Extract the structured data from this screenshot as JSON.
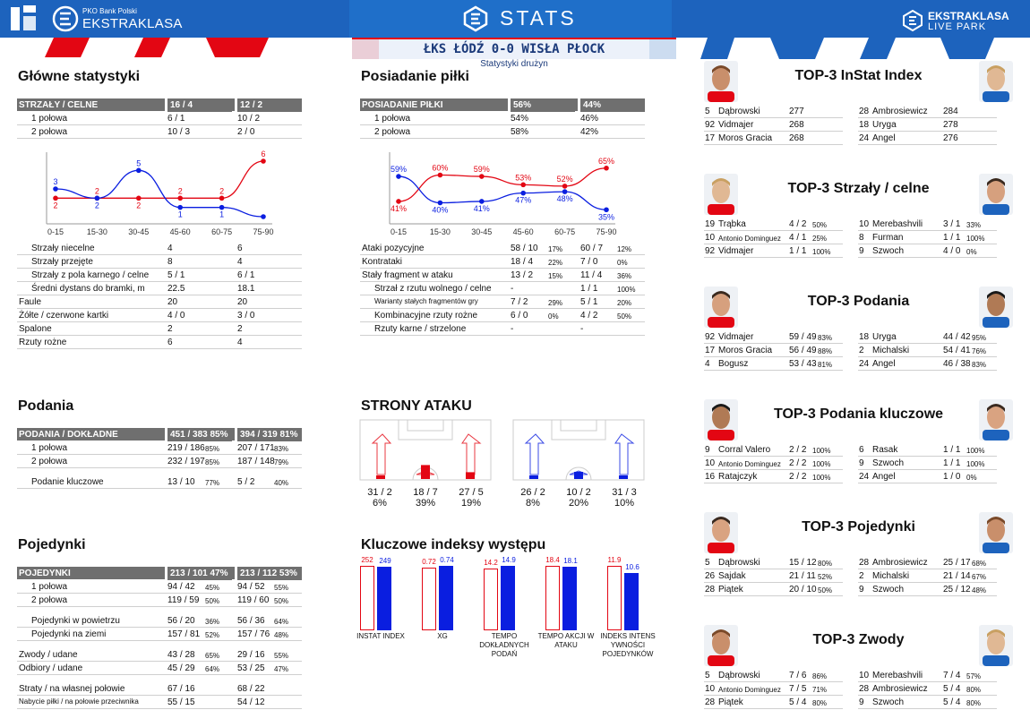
{
  "header": {
    "pko": "PKO Bank Polski",
    "league": "EKSTRAKLASA",
    "stats": "STATS",
    "livepark1": "EKSTRAKLASA",
    "livepark2": "LIVE PARK"
  },
  "match": {
    "title": "ŁKS ŁÓDŹ 0-0 WISŁA PŁOCK",
    "subtitle": "Statystyki drużyn"
  },
  "colors": {
    "home": "#e30613",
    "away": "#0a1ee0",
    "header": "#1d63bd",
    "table_header": "#6f6f6f"
  },
  "main_stats": {
    "title": "Główne statystyki",
    "header": [
      "STRZAŁY / CELNE",
      "16 / 4",
      "12 / 2"
    ],
    "rows_top": [
      [
        "1 połowa",
        "6 / 1",
        "10 / 2"
      ],
      [
        "2 połowa",
        "10 / 3",
        "2 / 0"
      ]
    ],
    "chart": {
      "x": [
        "0-15",
        "15-30",
        "30-45",
        "45-60",
        "60-75",
        "75-90"
      ],
      "home": [
        2,
        2,
        2,
        2,
        2,
        6
      ],
      "away": [
        3,
        2,
        5,
        1,
        1,
        0
      ],
      "home_labels": [
        "2",
        "2",
        "2",
        "2",
        "2",
        "6"
      ],
      "away_labels": [
        "3",
        "2",
        "5",
        "1",
        "1",
        ""
      ]
    },
    "rows_bottom": [
      [
        "Strzały niecelne",
        "4",
        "6"
      ],
      [
        "Strzały przejęte",
        "8",
        "4"
      ],
      [
        "Strzały z pola karnego / celne",
        "5 / 1",
        "6 / 1"
      ],
      [
        "Średni dystans do bramki, m",
        "22.5",
        "18.1"
      ],
      [
        "Faule",
        "20",
        "20"
      ],
      [
        "Żółte / czerwone kartki",
        "4 / 0",
        "3 / 0"
      ],
      [
        "Spalone",
        "2",
        "2"
      ],
      [
        "Rzuty rożne",
        "6",
        "4"
      ]
    ]
  },
  "possession": {
    "title": "Posiadanie piłki",
    "header": [
      "POSIADANIE PIŁKI",
      "56%",
      "44%"
    ],
    "rows_top": [
      [
        "1 połowa",
        "54%",
        "46%"
      ],
      [
        "2 połowa",
        "58%",
        "42%"
      ]
    ],
    "chart": {
      "x": [
        "0-15",
        "15-30",
        "30-45",
        "45-60",
        "60-75",
        "75-90"
      ],
      "home": [
        41,
        60,
        59,
        53,
        52,
        65
      ],
      "away": [
        59,
        40,
        41,
        47,
        48,
        35
      ],
      "home_labels": [
        "41%",
        "60%",
        "59%",
        "53%",
        "52%",
        "65%"
      ],
      "away_labels": [
        "59%",
        "40%",
        "41%",
        "47%",
        "48%",
        "35%"
      ]
    },
    "rows_bottom": [
      [
        "Ataki pozycyjne",
        "58 / 10",
        "17%",
        "60 / 7",
        "12%"
      ],
      [
        "Kontrataki",
        "18 / 4",
        "22%",
        "7 / 0",
        "0%"
      ],
      [
        "Stały fragment w ataku",
        "13 / 2",
        "15%",
        "11 / 4",
        "36%"
      ],
      [
        "Strzał z rzutu wolnego / celne",
        "-",
        "",
        "1 / 1",
        "100%"
      ],
      [
        "Warianty stałych fragmentów gry",
        "7 / 2",
        "29%",
        "5 / 1",
        "20%"
      ],
      [
        "Kombinacyjne rzuty rożne",
        "6 / 0",
        "0%",
        "4 / 2",
        "50%"
      ],
      [
        "Rzuty karne /  strzelone",
        "-",
        "",
        "-",
        ""
      ]
    ]
  },
  "passes": {
    "title": "Podania",
    "header": [
      "PODANIA / DOKŁADNE",
      "451 / 383 85%",
      "394 / 319 81%"
    ],
    "rows": [
      [
        "1 połowa",
        "219 / 186",
        "85%",
        "207 / 171",
        "83%"
      ],
      [
        "2 połowa",
        "232 / 197",
        "85%",
        "187 / 148",
        "79%"
      ],
      [
        "Podanie kluczowe",
        "13 / 10",
        "77%",
        "5 / 2",
        "40%"
      ]
    ]
  },
  "attack_sides": {
    "title": "STRONY ATAKU",
    "home": {
      "left": "31 / 2",
      "left_pct": "6%",
      "center": "18 / 7",
      "center_pct": "39%",
      "right": "27 / 5",
      "right_pct": "19%",
      "fill": [
        0.06,
        0.39,
        0.19
      ]
    },
    "away": {
      "left": "26 / 2",
      "left_pct": "8%",
      "center": "10 / 2",
      "center_pct": "20%",
      "right": "31 / 3",
      "right_pct": "10%",
      "fill": [
        0.08,
        0.2,
        0.1
      ]
    }
  },
  "duels": {
    "title": "Pojedynki",
    "header": [
      "POJEDYNKI",
      "213 / 101 47%",
      "213 / 112 53%"
    ],
    "rows": [
      [
        "1 połowa",
        "94 / 42",
        "45%",
        "94 / 52",
        "55%"
      ],
      [
        "2 połowa",
        "119 / 59",
        "50%",
        "119 / 60",
        "50%"
      ],
      [
        "Pojedynki w powietrzu",
        "56 / 20",
        "36%",
        "56 / 36",
        "64%"
      ],
      [
        "Pojedynki na ziemi",
        "157 / 81",
        "52%",
        "157 / 76",
        "48%"
      ],
      [
        "Zwody / udane",
        "43 / 28",
        "65%",
        "29 / 16",
        "55%"
      ],
      [
        "Odbiory / udane",
        "45 / 29",
        "64%",
        "53 / 25",
        "47%"
      ],
      [
        "Straty / na własnej połowie",
        "67 / 16",
        "",
        "68 / 22",
        ""
      ],
      [
        "Nabycie piłki / na połowie przeciwnika",
        "55 / 15",
        "",
        "54 / 12",
        ""
      ]
    ]
  },
  "key_indices": {
    "title": "Kluczowe indeksy występu",
    "items": [
      {
        "label": "INSTAT INDEX",
        "home": "252",
        "away": "249",
        "hv": 252,
        "av": 249
      },
      {
        "label": "XG",
        "home": "0.72",
        "away": "0.74",
        "hv": 0.72,
        "av": 0.74
      },
      {
        "label": "TEMPO DOKŁADNYCH PODAŃ",
        "home": "14.2",
        "away": "14.9",
        "hv": 14.2,
        "av": 14.9
      },
      {
        "label": "TEMPO AKCJI W ATAKU",
        "home": "18.4",
        "away": "18.1",
        "hv": 18.4,
        "av": 18.1
      },
      {
        "label": "INDEKS INTENS YWNOŚCI POJEDYNKÓW",
        "home": "11.9",
        "away": "10.6",
        "hv": 11.9,
        "av": 10.6
      }
    ]
  },
  "top3": [
    {
      "title": "TOP-3 InStat Index",
      "home": [
        [
          "5",
          "Dąbrowski",
          "277",
          ""
        ],
        [
          "92",
          "Vidmajer",
          "268",
          ""
        ],
        [
          "17",
          "Moros Gracia",
          "268",
          ""
        ]
      ],
      "away": [
        [
          "28",
          "Ambrosiewicz",
          "284",
          ""
        ],
        [
          "18",
          "Uryga",
          "278",
          ""
        ],
        [
          "24",
          "Angel",
          "276",
          ""
        ]
      ]
    },
    {
      "title": "TOP-3 Strzały / celne",
      "home": [
        [
          "19",
          "Trąbka",
          "4 / 2",
          "50%"
        ],
        [
          "10",
          "Antonio Dominguez",
          "4 / 1",
          "25%"
        ],
        [
          "92",
          "Vidmajer",
          "1 / 1",
          "100%"
        ]
      ],
      "away": [
        [
          "10",
          "Merebashvili",
          "3 / 1",
          "33%"
        ],
        [
          "8",
          "Furman",
          "1 / 1",
          "100%"
        ],
        [
          "9",
          "Szwoch",
          "4 / 0",
          "0%"
        ]
      ]
    },
    {
      "title": "TOP-3 Podania",
      "home": [
        [
          "92",
          "Vidmajer",
          "59 / 49",
          "83%"
        ],
        [
          "17",
          "Moros Gracia",
          "56 / 49",
          "88%"
        ],
        [
          "4",
          "Bogusz",
          "53 / 43",
          "81%"
        ]
      ],
      "away": [
        [
          "18",
          "Uryga",
          "44 / 42",
          "95%"
        ],
        [
          "2",
          "Michalski",
          "54 / 41",
          "76%"
        ],
        [
          "24",
          "Angel",
          "46 / 38",
          "83%"
        ]
      ]
    },
    {
      "title": "TOP-3 Podania kluczowe",
      "home": [
        [
          "9",
          "Corral Valero",
          "2 / 2",
          "100%"
        ],
        [
          "10",
          "Antonio Dominguez",
          "2 / 2",
          "100%"
        ],
        [
          "16",
          "Ratajczyk",
          "2 / 2",
          "100%"
        ]
      ],
      "away": [
        [
          "6",
          "Rasak",
          "1 / 1",
          "100%"
        ],
        [
          "9",
          "Szwoch",
          "1 / 1",
          "100%"
        ],
        [
          "24",
          "Angel",
          "1 / 0",
          "0%"
        ]
      ]
    },
    {
      "title": "TOP-3 Pojedynki",
      "home": [
        [
          "5",
          "Dąbrowski",
          "15 / 12",
          "80%"
        ],
        [
          "26",
          "Sajdak",
          "21 / 11",
          "52%"
        ],
        [
          "28",
          "Piątek",
          "20 / 10",
          "50%"
        ]
      ],
      "away": [
        [
          "28",
          "Ambrosiewicz",
          "25 / 17",
          "68%"
        ],
        [
          "2",
          "Michalski",
          "21 / 14",
          "67%"
        ],
        [
          "9",
          "Szwoch",
          "25 / 12",
          "48%"
        ]
      ]
    },
    {
      "title": "TOP-3 Zwody",
      "home": [
        [
          "5",
          "Dąbrowski",
          "7 / 6",
          "86%"
        ],
        [
          "10",
          "Antonio Dominguez",
          "7 / 5",
          "71%"
        ],
        [
          "28",
          "Piątek",
          "5 / 4",
          "80%"
        ]
      ],
      "away": [
        [
          "10",
          "Merebashvili",
          "7 / 4",
          "57%"
        ],
        [
          "28",
          "Ambrosiewicz",
          "5 / 4",
          "80%"
        ],
        [
          "9",
          "Szwoch",
          "5 / 4",
          "80%"
        ]
      ]
    }
  ]
}
